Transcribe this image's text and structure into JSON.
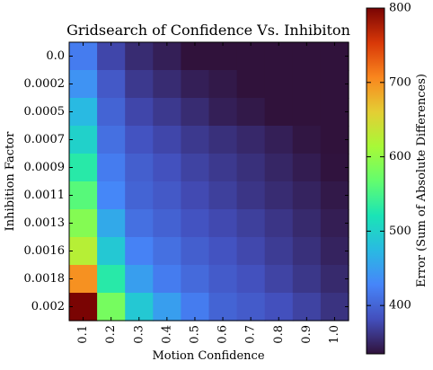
{
  "chart_data": {
    "type": "heatmap",
    "title": "Gridsearch of Confidence Vs. Inhibiton",
    "xlabel": "Motion Confidence",
    "ylabel": "Inhibition Factor",
    "x": [
      "0.1",
      "0.2",
      "0.3",
      "0.4",
      "0.5",
      "0.6",
      "0.7",
      "0.8",
      "0.9",
      "1.0"
    ],
    "y": [
      "0.0",
      "0.0002",
      "0.0005",
      "0.0007",
      "0.0009",
      "0.0011",
      "0.0013",
      "0.0016",
      "0.0018",
      "0.002"
    ],
    "values": [
      [
        420,
        375,
        355,
        345,
        330,
        325,
        325,
        325,
        322,
        322
      ],
      [
        440,
        390,
        365,
        355,
        345,
        340,
        330,
        325,
        324,
        323
      ],
      [
        475,
        400,
        375,
        365,
        355,
        345,
        340,
        335,
        328,
        326
      ],
      [
        500,
        410,
        385,
        375,
        365,
        358,
        352,
        345,
        338,
        332
      ],
      [
        530,
        420,
        395,
        383,
        372,
        365,
        358,
        350,
        343,
        336
      ],
      [
        560,
        430,
        400,
        390,
        378,
        370,
        362,
        355,
        348,
        340
      ],
      [
        590,
        460,
        410,
        398,
        385,
        377,
        370,
        362,
        353,
        344
      ],
      [
        625,
        490,
        425,
        410,
        395,
        385,
        376,
        367,
        358,
        348
      ],
      [
        700,
        530,
        450,
        420,
        405,
        392,
        383,
        373,
        363,
        353
      ],
      [
        800,
        580,
        490,
        450,
        420,
        400,
        392,
        382,
        372,
        360
      ]
    ],
    "colorbar": {
      "label": "Error (Sum of Absolute Differences)",
      "min": 335,
      "max": 800,
      "ticks": [
        "400",
        "500",
        "600",
        "700",
        "800"
      ],
      "colormap": "turbo"
    }
  }
}
